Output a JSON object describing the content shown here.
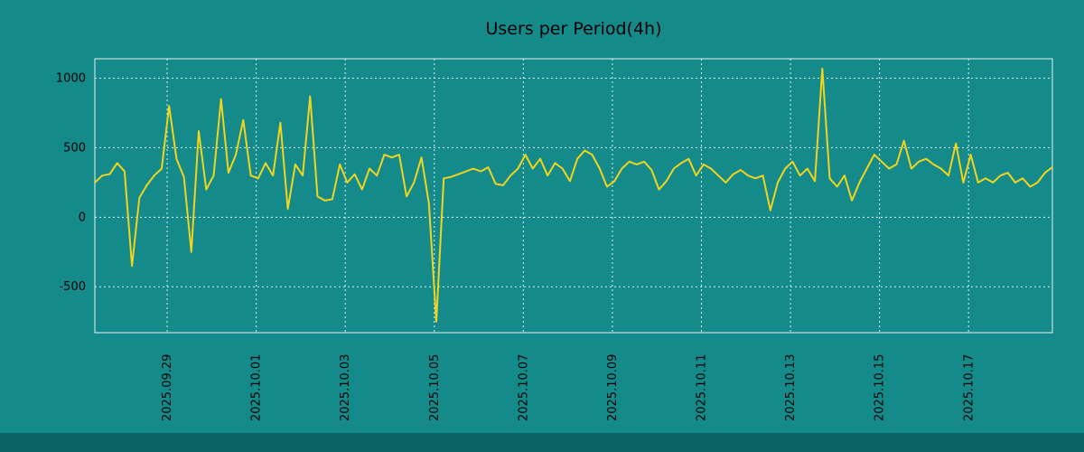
{
  "chart_data": {
    "type": "line",
    "title": "Users per Period(4h)",
    "series_name": "users-per-period",
    "period_hours": 4,
    "ylim": [
      -830,
      1140
    ],
    "yticks": [
      1000,
      500,
      0,
      -500
    ],
    "xtick_labels": [
      "2025.09.29",
      "2025.10.01",
      "2025.10.03",
      "2025.10.05",
      "2025.10.07",
      "2025.10.09",
      "2025.10.11",
      "2025.10.13",
      "2025.10.15",
      "2025.10.17"
    ],
    "first_tick_frac": 0.0755,
    "tick_step_frac": 0.093,
    "grid": true,
    "legend": "none",
    "values": [
      250,
      300,
      310,
      390,
      330,
      -350,
      140,
      230,
      300,
      350,
      800,
      420,
      290,
      -250,
      620,
      200,
      300,
      850,
      320,
      450,
      700,
      300,
      280,
      390,
      300,
      680,
      60,
      380,
      300,
      870,
      150,
      120,
      130,
      380,
      250,
      310,
      200,
      350,
      300,
      450,
      430,
      450,
      150,
      250,
      430,
      100,
      -750,
      280,
      290,
      310,
      330,
      350,
      330,
      360,
      240,
      230,
      300,
      350,
      450,
      350,
      420,
      300,
      390,
      350,
      260,
      420,
      480,
      450,
      350,
      220,
      260,
      350,
      400,
      380,
      400,
      340,
      200,
      260,
      350,
      390,
      420,
      300,
      380,
      350,
      300,
      250,
      310,
      340,
      300,
      280,
      300,
      50,
      250,
      350,
      400,
      300,
      350,
      260,
      1070,
      280,
      220,
      300,
      120,
      250,
      350,
      450,
      400,
      350,
      380,
      550,
      350,
      400,
      420,
      380,
      350,
      300,
      530,
      250,
      450,
      250,
      280,
      250,
      300,
      320,
      250,
      280,
      220,
      250,
      320,
      360
    ],
    "colors": {
      "background": "#158a8b",
      "footer_bar": "#0b6365",
      "line": "#f0d51c",
      "grid": "#ffffff",
      "frame": "#e8f2f2",
      "text": "#000000"
    }
  }
}
